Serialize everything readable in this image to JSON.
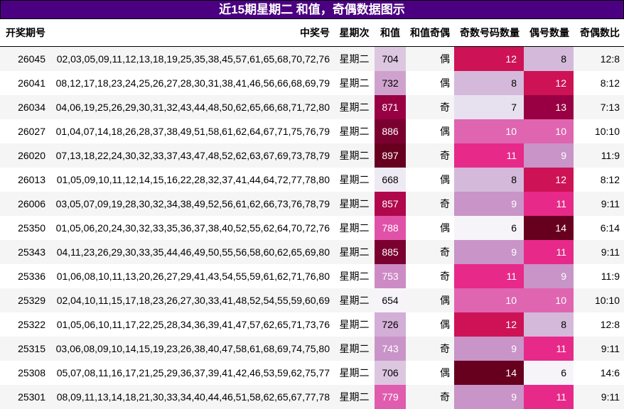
{
  "title": "近15期星期二 和值，奇偶数据图示",
  "headers": {
    "issue": "开奖期号",
    "numbers": "中奖号",
    "weekday": "星期次",
    "sum": "和值",
    "sum_parity": "和值奇偶",
    "odd_count": "奇数号码数量",
    "even_count": "偶号数量",
    "ratio": "奇偶数比"
  },
  "rows": [
    {
      "issue": "26045",
      "numbers": "02,03,05,09,11,12,13,18,19,25,35,38,45,57,61,65,68,70,72,76",
      "weekday": "星期二",
      "sum": "704",
      "sum_parity": "偶",
      "odd": "12",
      "even": "8",
      "ratio": "12:8",
      "sum_bg": "#dcc6e0",
      "sum_fg": "#000000",
      "odd_bg": "#ce1256",
      "odd_fg": "#ffffff",
      "even_bg": "#d4b9da",
      "even_fg": "#000000"
    },
    {
      "issue": "26041",
      "numbers": "08,12,17,18,23,24,25,26,27,28,30,31,38,41,46,56,66,68,69,79",
      "weekday": "星期二",
      "sum": "732",
      "sum_parity": "偶",
      "odd": "8",
      "even": "12",
      "ratio": "8:12",
      "sum_bg": "#cfa2ce",
      "sum_fg": "#000000",
      "odd_bg": "#d4b9da",
      "odd_fg": "#000000",
      "even_bg": "#ce1256",
      "even_fg": "#ffffff"
    },
    {
      "issue": "26034",
      "numbers": "04,06,19,25,26,29,30,31,32,43,44,48,50,62,65,66,68,71,72,80",
      "weekday": "星期二",
      "sum": "871",
      "sum_parity": "奇",
      "odd": "7",
      "even": "13",
      "ratio": "7:13",
      "sum_bg": "#980043",
      "sum_fg": "#ffffff",
      "odd_bg": "#e7e1ef",
      "odd_fg": "#000000",
      "even_bg": "#980043",
      "even_fg": "#ffffff"
    },
    {
      "issue": "26027",
      "numbers": "01,04,07,14,18,26,28,37,38,49,51,58,61,62,64,67,71,75,76,79",
      "weekday": "星期二",
      "sum": "886",
      "sum_parity": "偶",
      "odd": "10",
      "even": "10",
      "ratio": "10:10",
      "sum_bg": "#7a0030",
      "sum_fg": "#ffffff",
      "odd_bg": "#df65b0",
      "odd_fg": "#ffffff",
      "even_bg": "#df65b0",
      "even_fg": "#ffffff"
    },
    {
      "issue": "26020",
      "numbers": "07,13,18,22,24,30,32,33,37,43,47,48,52,62,63,67,69,73,78,79",
      "weekday": "星期二",
      "sum": "897",
      "sum_parity": "奇",
      "odd": "11",
      "even": "9",
      "ratio": "11:9",
      "sum_bg": "#67001f",
      "sum_fg": "#ffffff",
      "odd_bg": "#e7298a",
      "odd_fg": "#ffffff",
      "even_bg": "#c994c7",
      "even_fg": "#ffffff"
    },
    {
      "issue": "26013",
      "numbers": "01,05,09,10,11,12,14,15,16,22,28,32,37,41,44,64,72,77,78,80",
      "weekday": "星期二",
      "sum": "668",
      "sum_parity": "偶",
      "odd": "8",
      "even": "12",
      "ratio": "8:12",
      "sum_bg": "#eeeaf4",
      "sum_fg": "#000000",
      "odd_bg": "#d4b9da",
      "odd_fg": "#000000",
      "even_bg": "#ce1256",
      "even_fg": "#ffffff"
    },
    {
      "issue": "26006",
      "numbers": "03,05,07,09,19,28,30,32,34,38,49,52,56,61,62,66,73,76,78,79",
      "weekday": "星期二",
      "sum": "857",
      "sum_parity": "奇",
      "odd": "9",
      "even": "11",
      "ratio": "9:11",
      "sum_bg": "#b0084a",
      "sum_fg": "#ffffff",
      "odd_bg": "#c994c7",
      "odd_fg": "#ffffff",
      "even_bg": "#e7298a",
      "even_fg": "#ffffff"
    },
    {
      "issue": "25350",
      "numbers": "01,05,06,20,24,30,32,33,35,36,37,38,40,52,55,62,64,70,72,76",
      "weekday": "星期二",
      "sum": "788",
      "sum_parity": "偶",
      "odd": "6",
      "even": "14",
      "ratio": "6:14",
      "sum_bg": "#e052a8",
      "sum_fg": "#ffffff",
      "odd_bg": "#f7f4f9",
      "odd_fg": "#000000",
      "even_bg": "#67001f",
      "even_fg": "#ffffff"
    },
    {
      "issue": "25343",
      "numbers": "04,11,23,26,29,30,33,35,44,46,49,50,55,56,58,60,62,65,69,80",
      "weekday": "星期二",
      "sum": "885",
      "sum_parity": "奇",
      "odd": "9",
      "even": "11",
      "ratio": "9:11",
      "sum_bg": "#7a0030",
      "sum_fg": "#ffffff",
      "odd_bg": "#c994c7",
      "odd_fg": "#ffffff",
      "even_bg": "#e7298a",
      "even_fg": "#ffffff"
    },
    {
      "issue": "25336",
      "numbers": "01,06,08,10,11,13,20,26,27,29,41,43,54,55,59,61,62,71,76,80",
      "weekday": "星期二",
      "sum": "753",
      "sum_parity": "奇",
      "odd": "11",
      "even": "9",
      "ratio": "11:9",
      "sum_bg": "#cd8bc6",
      "sum_fg": "#ffffff",
      "odd_bg": "#e7298a",
      "odd_fg": "#ffffff",
      "even_bg": "#c994c7",
      "even_fg": "#ffffff"
    },
    {
      "issue": "25329",
      "numbers": "02,04,10,11,15,17,18,23,26,27,30,33,41,48,52,54,55,59,60,69",
      "weekday": "星期二",
      "sum": "654",
      "sum_parity": "偶",
      "odd": "10",
      "even": "10",
      "ratio": "10:10",
      "sum_bg": "#f7f4f9",
      "sum_fg": "#000000",
      "odd_bg": "#df65b0",
      "odd_fg": "#ffffff",
      "even_bg": "#df65b0",
      "even_fg": "#ffffff"
    },
    {
      "issue": "25322",
      "numbers": "01,05,06,10,11,17,22,25,28,34,36,39,41,47,57,62,65,71,73,76",
      "weekday": "星期二",
      "sum": "726",
      "sum_parity": "偶",
      "odd": "12",
      "even": "8",
      "ratio": "12:8",
      "sum_bg": "#d3aed6",
      "sum_fg": "#000000",
      "odd_bg": "#ce1256",
      "odd_fg": "#ffffff",
      "even_bg": "#d4b9da",
      "even_fg": "#000000"
    },
    {
      "issue": "25315",
      "numbers": "03,06,08,09,10,14,15,19,23,26,38,40,47,58,61,68,69,74,75,80",
      "weekday": "星期二",
      "sum": "743",
      "sum_parity": "奇",
      "odd": "9",
      "even": "11",
      "ratio": "9:11",
      "sum_bg": "#c994c7",
      "sum_fg": "#ffffff",
      "odd_bg": "#c994c7",
      "odd_fg": "#ffffff",
      "even_bg": "#e7298a",
      "even_fg": "#ffffff"
    },
    {
      "issue": "25308",
      "numbers": "05,07,08,11,16,17,21,25,29,36,37,39,41,42,46,53,59,62,75,77",
      "weekday": "星期二",
      "sum": "706",
      "sum_parity": "偶",
      "odd": "14",
      "even": "6",
      "ratio": "14:6",
      "sum_bg": "#dcc6e0",
      "sum_fg": "#000000",
      "odd_bg": "#67001f",
      "odd_fg": "#ffffff",
      "even_bg": "#f7f4f9",
      "even_fg": "#000000"
    },
    {
      "issue": "25301",
      "numbers": "08,09,11,13,14,18,21,30,33,34,40,44,46,51,58,62,65,67,77,78",
      "weekday": "星期二",
      "sum": "779",
      "sum_parity": "奇",
      "odd": "9",
      "even": "11",
      "ratio": "9:11",
      "sum_bg": "#df5cae",
      "sum_fg": "#ffffff",
      "odd_bg": "#c994c7",
      "odd_fg": "#ffffff",
      "even_bg": "#e7298a",
      "even_fg": "#ffffff"
    }
  ],
  "colors": {
    "title_bg": "#4b0082",
    "title_fg": "#ffffff",
    "row_stripe": "#f5f5f5"
  },
  "chart_data": {
    "type": "table",
    "title": "近15期星期二 和值，奇偶数据图示",
    "columns": [
      "开奖期号",
      "中奖号",
      "星期次",
      "和值",
      "和值奇偶",
      "奇数号码数量",
      "偶号数量",
      "奇偶数比"
    ],
    "categories": [
      "26045",
      "26041",
      "26034",
      "26027",
      "26020",
      "26013",
      "26006",
      "25350",
      "25343",
      "25336",
      "25329",
      "25322",
      "25315",
      "25308",
      "25301"
    ],
    "series": [
      {
        "name": "和值",
        "values": [
          704,
          732,
          871,
          886,
          897,
          668,
          857,
          788,
          885,
          753,
          654,
          726,
          743,
          706,
          779
        ]
      },
      {
        "name": "奇数号码数量",
        "values": [
          12,
          8,
          7,
          10,
          11,
          8,
          9,
          6,
          9,
          11,
          10,
          12,
          9,
          14,
          9
        ]
      },
      {
        "name": "偶号数量",
        "values": [
          8,
          12,
          13,
          10,
          9,
          12,
          11,
          14,
          11,
          9,
          10,
          8,
          11,
          6,
          11
        ]
      }
    ],
    "sum_parity": [
      "偶",
      "偶",
      "奇",
      "偶",
      "奇",
      "偶",
      "奇",
      "偶",
      "奇",
      "奇",
      "偶",
      "偶",
      "奇",
      "偶",
      "奇"
    ],
    "ratio": [
      "12:8",
      "8:12",
      "7:13",
      "10:10",
      "11:9",
      "8:12",
      "9:11",
      "6:14",
      "9:11",
      "11:9",
      "10:10",
      "12:8",
      "9:11",
      "14:6",
      "9:11"
    ],
    "colormap": "PuRd heatmap on 和值, 奇数号码数量, 偶号数量"
  }
}
